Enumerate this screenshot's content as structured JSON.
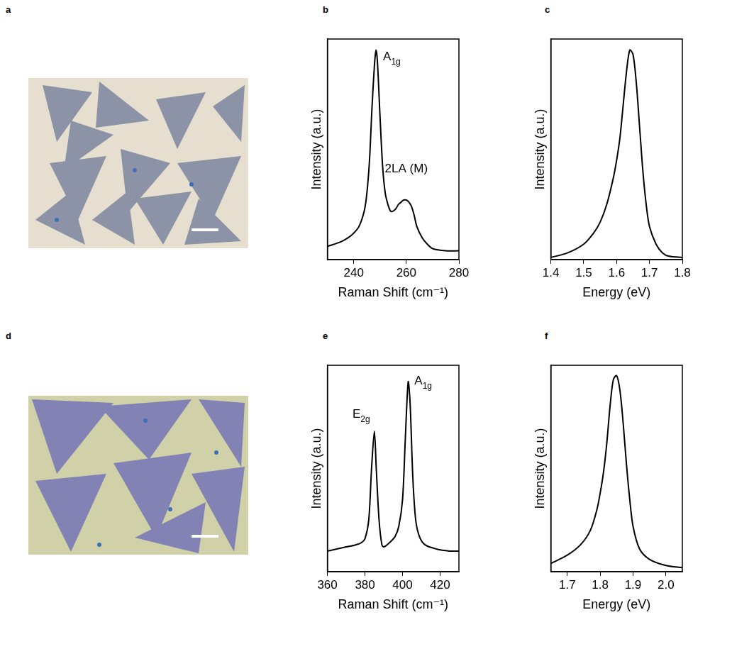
{
  "chart_data": [
    {
      "type": "image",
      "panel": "a"
    },
    {
      "type": "line",
      "panel": "b",
      "x_label": "Raman Shift (cm⁻¹)",
      "y_label": "Intensity (a.u.)",
      "x": [
        230,
        235,
        238,
        240,
        242,
        244,
        245,
        246,
        247,
        248,
        248.5,
        249,
        250,
        251,
        252,
        253,
        254,
        255,
        256,
        257,
        258,
        259,
        260,
        261,
        262,
        263,
        264,
        266,
        268,
        270,
        275,
        280
      ],
      "values": [
        0.06,
        0.08,
        0.1,
        0.12,
        0.15,
        0.22,
        0.3,
        0.45,
        0.7,
        0.9,
        0.95,
        0.9,
        0.65,
        0.42,
        0.3,
        0.25,
        0.22,
        0.22,
        0.23,
        0.25,
        0.26,
        0.27,
        0.27,
        0.26,
        0.24,
        0.2,
        0.15,
        0.1,
        0.07,
        0.05,
        0.04,
        0.04
      ],
      "color": "#000000",
      "xlim": [
        230,
        280
      ],
      "xticks": [
        240,
        260,
        280
      ],
      "ylim": [
        0,
        1
      ],
      "tick_labels": "x",
      "grid": false,
      "annotations": [
        {
          "text": "A",
          "subscript": "1g",
          "x": 254.5,
          "y": 0.88
        },
        {
          "text": "2LA (M)",
          "x": 260,
          "y": 0.37
        }
      ]
    },
    {
      "type": "line",
      "panel": "c",
      "x_label": "Energy (eV)",
      "y_label": "Intensity (a.u.)",
      "x": [
        1.4,
        1.45,
        1.5,
        1.53,
        1.55,
        1.57,
        1.59,
        1.6,
        1.61,
        1.62,
        1.63,
        1.64,
        1.65,
        1.66,
        1.67,
        1.68,
        1.69,
        1.7,
        1.72,
        1.74,
        1.76,
        1.8
      ],
      "values": [
        0.01,
        0.03,
        0.07,
        0.12,
        0.17,
        0.25,
        0.37,
        0.45,
        0.55,
        0.7,
        0.85,
        0.95,
        0.93,
        0.8,
        0.6,
        0.4,
        0.25,
        0.15,
        0.07,
        0.03,
        0.015,
        0.01
      ],
      "color": "#000000",
      "xlim": [
        1.4,
        1.8
      ],
      "xticks": [
        1.4,
        1.5,
        1.6,
        1.7,
        1.8
      ],
      "ylim": [
        0,
        1
      ],
      "tick_labels": "x",
      "grid": false
    },
    {
      "type": "image",
      "panel": "d"
    },
    {
      "type": "line",
      "panel": "e",
      "x_label": "Raman Shift (cm⁻¹)",
      "y_label": "Intensity (a.u.)",
      "x": [
        360,
        370,
        375,
        378,
        380,
        382,
        383.5,
        385,
        386,
        387.5,
        389,
        390,
        393,
        396,
        398,
        400,
        401.5,
        403,
        404,
        405.5,
        407,
        409,
        412,
        418,
        425,
        430
      ],
      "values": [
        0.1,
        0.12,
        0.13,
        0.14,
        0.16,
        0.25,
        0.5,
        0.68,
        0.5,
        0.25,
        0.13,
        0.12,
        0.14,
        0.17,
        0.22,
        0.35,
        0.65,
        0.92,
        0.82,
        0.45,
        0.25,
        0.17,
        0.13,
        0.11,
        0.1,
        0.1
      ],
      "color": "#000000",
      "xlim": [
        360,
        430
      ],
      "xticks": [
        360,
        380,
        400,
        420
      ],
      "ylim": [
        0,
        1
      ],
      "tick_labels": "x",
      "grid": false,
      "annotations": [
        {
          "text": "E",
          "subscript": "2g",
          "x": 378,
          "y": 0.72
        },
        {
          "text": "A",
          "subscript": "1g",
          "x": 411,
          "y": 0.88
        }
      ]
    },
    {
      "type": "line",
      "panel": "f",
      "x_label": "Energy (eV)",
      "y_label": "Intensity (a.u.)",
      "x": [
        1.65,
        1.7,
        1.74,
        1.77,
        1.79,
        1.8,
        1.81,
        1.82,
        1.83,
        1.84,
        1.85,
        1.86,
        1.87,
        1.88,
        1.89,
        1.9,
        1.92,
        1.95,
        2.0,
        2.05
      ],
      "values": [
        0.04,
        0.08,
        0.13,
        0.2,
        0.3,
        0.38,
        0.48,
        0.62,
        0.8,
        0.93,
        0.95,
        0.88,
        0.72,
        0.52,
        0.35,
        0.22,
        0.11,
        0.06,
        0.03,
        0.02
      ],
      "color": "#000000",
      "xlim": [
        1.65,
        2.05
      ],
      "xticks": [
        1.7,
        1.8,
        1.9,
        {
          "value": 2,
          "label": "2.0"
        }
      ],
      "ylim": [
        0,
        1
      ],
      "tick_labels": "x",
      "grid": false
    }
  ]
}
